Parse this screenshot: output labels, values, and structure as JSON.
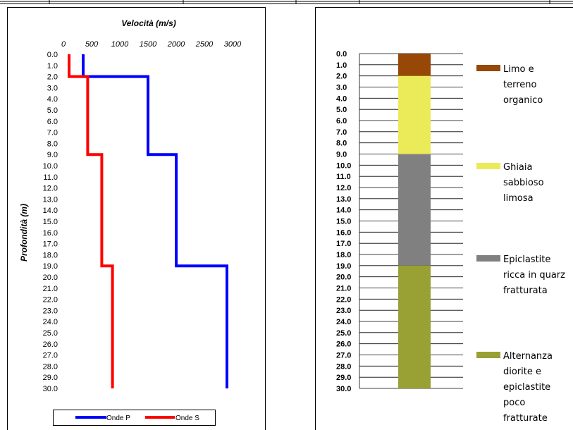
{
  "colors": {
    "onde_p": "#0000ff",
    "onde_s": "#ff0000",
    "limo": "#974706",
    "ghiaia": "#ebeb5a",
    "epiclastite": "#808080",
    "alternanza": "#99a034"
  },
  "chart_data": [
    {
      "type": "line",
      "title": "Velocità (m/s)",
      "xlabel": "Velocità (m/s)",
      "ylabel": "Profondità (m)",
      "xlim": [
        0,
        3000
      ],
      "x_ticks": [
        "0",
        "500",
        "1000",
        "1500",
        "2000",
        "2500",
        "3000"
      ],
      "ylim": [
        0,
        30
      ],
      "y_inverted": true,
      "y_ticks": [
        "0.0",
        "1.0",
        "2.0",
        "3.0",
        "4.0",
        "5.0",
        "6.0",
        "7.0",
        "8.0",
        "9.0",
        "10.0",
        "11.0",
        "12.0",
        "13.0",
        "14.0",
        "15.0",
        "16.0",
        "17.0",
        "18.0",
        "19.0",
        "20.0",
        "21.0",
        "22.0",
        "23.0",
        "24.0",
        "25.0",
        "26.0",
        "27.0",
        "28.0",
        "29.0",
        "30.0"
      ],
      "grid": false,
      "legend": "bottom",
      "series": [
        {
          "name": "Onde P",
          "color_key": "onde_p",
          "points": [
            [
              350,
              0
            ],
            [
              350,
              2
            ],
            [
              1500,
              2
            ],
            [
              1500,
              9
            ],
            [
              2000,
              9
            ],
            [
              2000,
              19
            ],
            [
              2900,
              19
            ],
            [
              2900,
              30
            ]
          ]
        },
        {
          "name": "Onde S",
          "color_key": "onde_s",
          "points": [
            [
              100,
              0
            ],
            [
              100,
              2
            ],
            [
              430,
              2
            ],
            [
              430,
              9
            ],
            [
              680,
              9
            ],
            [
              680,
              19
            ],
            [
              870,
              19
            ],
            [
              870,
              30
            ]
          ]
        }
      ]
    },
    {
      "type": "bar",
      "stacked": true,
      "orientation": "vertical-column",
      "ylim": [
        0,
        30
      ],
      "y_inverted": true,
      "y_ticks": [
        "0.0",
        "1.0",
        "2.0",
        "3.0",
        "4.0",
        "5.0",
        "6.0",
        "7.0",
        "8.0",
        "9.0",
        "10.0",
        "11.0",
        "12.0",
        "13.0",
        "14.0",
        "15.0",
        "16.0",
        "17.0",
        "18.0",
        "19.0",
        "20.0",
        "21.0",
        "22.0",
        "23.0",
        "24.0",
        "25.0",
        "26.0",
        "27.0",
        "28.0",
        "29.0",
        "30.0"
      ],
      "grid": true,
      "legend": "right",
      "layers": [
        {
          "top": 0,
          "bottom": 2,
          "color_key": "limo",
          "label_lines": [
            "Limo e",
            "terreno",
            "organico"
          ]
        },
        {
          "top": 2,
          "bottom": 9,
          "color_key": "ghiaia",
          "label_lines": [
            "Ghiaia",
            "sabbioso",
            "limosa"
          ]
        },
        {
          "top": 9,
          "bottom": 19,
          "color_key": "epiclastite",
          "label_lines": [
            "Epiclastite",
            "ricca in quarz",
            "fratturata"
          ]
        },
        {
          "top": 19,
          "bottom": 30,
          "color_key": "alternanza",
          "label_lines": [
            "Alternanza",
            "diorite e",
            "epiclastite",
            "poco",
            "fratturate"
          ]
        }
      ]
    }
  ]
}
